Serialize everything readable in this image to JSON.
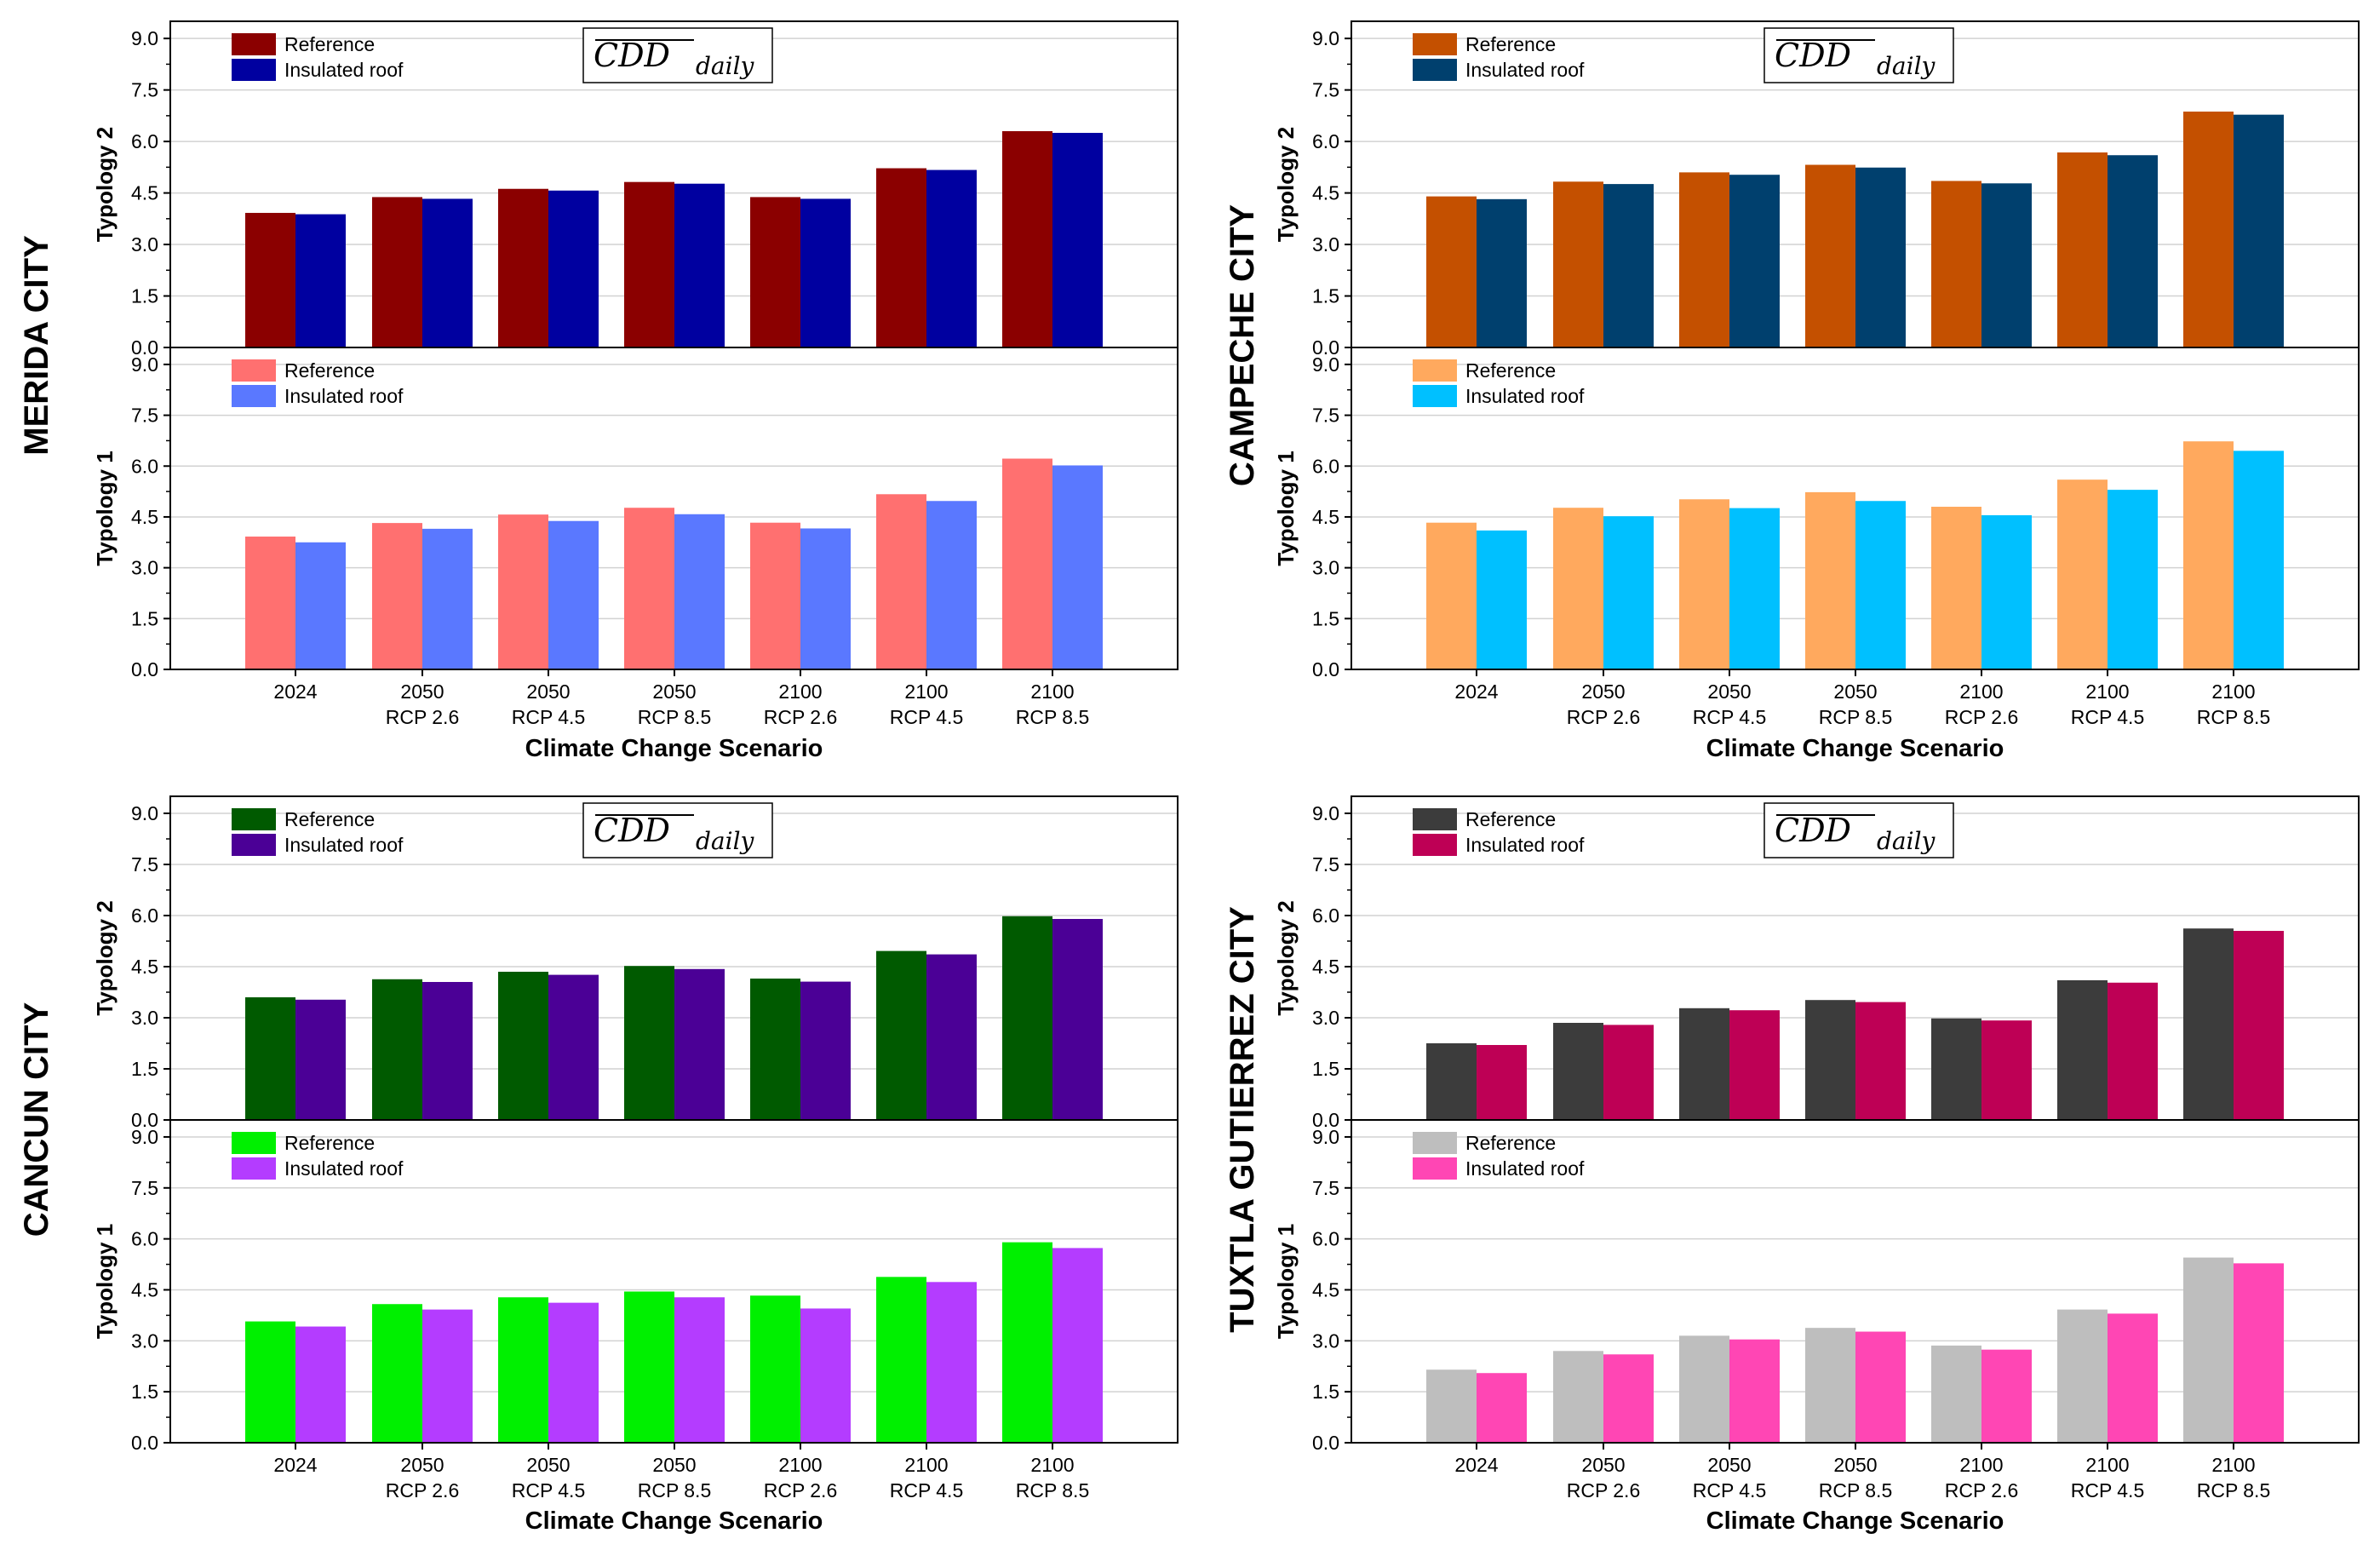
{
  "chart_data": {
    "type": "bar",
    "xlabel": "Climate Change Scenario",
    "ylim": [
      0,
      9.5
    ],
    "yticks": [
      "0.0",
      "1.5",
      "3.0",
      "4.5",
      "6.0",
      "7.5",
      "9.0"
    ],
    "categories": [
      [
        "2024",
        ""
      ],
      [
        "2050",
        "RCP 2.6"
      ],
      [
        "2050",
        "RCP 4.5"
      ],
      [
        "2050",
        "RCP 8.5"
      ],
      [
        "2100",
        "RCP 2.6"
      ],
      [
        "2100",
        "RCP 4.5"
      ],
      [
        "2100",
        "RCP 8.5"
      ]
    ],
    "annotation": {
      "main": "CDD",
      "sub": "daily"
    },
    "panels": [
      {
        "city": "MERIDA CITY",
        "subplots": [
          {
            "ylabel": "Typology 2",
            "series": [
              {
                "name": "Reference",
                "color": "#8B0000",
                "values": [
                  3.92,
                  4.38,
                  4.62,
                  4.82,
                  4.38,
                  5.22,
                  6.3
                ]
              },
              {
                "name": "Insulated roof",
                "color": "#0000A0",
                "values": [
                  3.88,
                  4.33,
                  4.57,
                  4.77,
                  4.33,
                  5.17,
                  6.25
                ]
              }
            ]
          },
          {
            "ylabel": "Typology 1",
            "series": [
              {
                "name": "Reference",
                "color": "#FF7070",
                "values": [
                  3.92,
                  4.32,
                  4.57,
                  4.77,
                  4.33,
                  5.17,
                  6.22
                ]
              },
              {
                "name": "Insulated roof",
                "color": "#5A78FF",
                "values": [
                  3.75,
                  4.15,
                  4.38,
                  4.58,
                  4.16,
                  4.97,
                  6.02
                ]
              }
            ]
          }
        ]
      },
      {
        "city": "CAMPECHE CITY",
        "subplots": [
          {
            "ylabel": "Typology 2",
            "series": [
              {
                "name": "Reference",
                "color": "#C45000",
                "values": [
                  4.4,
                  4.83,
                  5.1,
                  5.32,
                  4.85,
                  5.68,
                  6.87
                ]
              },
              {
                "name": "Insulated roof",
                "color": "#00406E",
                "values": [
                  4.32,
                  4.76,
                  5.03,
                  5.24,
                  4.78,
                  5.6,
                  6.78
                ]
              }
            ]
          },
          {
            "ylabel": "Typology 1",
            "series": [
              {
                "name": "Reference",
                "color": "#FFA95E",
                "values": [
                  4.33,
                  4.77,
                  5.02,
                  5.23,
                  4.8,
                  5.6,
                  6.73
                ]
              },
              {
                "name": "Insulated roof",
                "color": "#00C0FF",
                "values": [
                  4.1,
                  4.52,
                  4.76,
                  4.97,
                  4.55,
                  5.3,
                  6.45
                ]
              }
            ]
          }
        ]
      },
      {
        "city": "CANCUN CITY",
        "subplots": [
          {
            "ylabel": "Typology 2",
            "series": [
              {
                "name": "Reference",
                "color": "#005A00",
                "values": [
                  3.6,
                  4.13,
                  4.35,
                  4.52,
                  4.15,
                  4.96,
                  5.98
                ]
              },
              {
                "name": "Insulated roof",
                "color": "#4B0096",
                "values": [
                  3.53,
                  4.05,
                  4.26,
                  4.43,
                  4.06,
                  4.86,
                  5.9
                ]
              }
            ]
          },
          {
            "ylabel": "Typology 1",
            "series": [
              {
                "name": "Reference",
                "color": "#00F000",
                "values": [
                  3.57,
                  4.08,
                  4.28,
                  4.45,
                  4.33,
                  4.88,
                  5.9
                ]
              },
              {
                "name": "Insulated roof",
                "color": "#B43CFF",
                "values": [
                  3.42,
                  3.92,
                  4.12,
                  4.28,
                  3.95,
                  4.73,
                  5.73
                ]
              }
            ]
          }
        ]
      },
      {
        "city": "TUXTLA GUTIERREZ CITY",
        "subplots": [
          {
            "ylabel": "Typology 2",
            "series": [
              {
                "name": "Reference",
                "color": "#3C3C3C",
                "values": [
                  2.25,
                  2.85,
                  3.28,
                  3.52,
                  2.98,
                  4.1,
                  5.62
                ]
              },
              {
                "name": "Insulated roof",
                "color": "#BE0055",
                "values": [
                  2.2,
                  2.79,
                  3.22,
                  3.46,
                  2.92,
                  4.03,
                  5.55
                ]
              }
            ]
          },
          {
            "ylabel": "Typology 1",
            "series": [
              {
                "name": "Reference",
                "color": "#BEBEBE",
                "values": [
                  2.15,
                  2.7,
                  3.15,
                  3.38,
                  2.86,
                  3.92,
                  5.45
                ]
              },
              {
                "name": "Insulated roof",
                "color": "#FF46B4",
                "values": [
                  2.05,
                  2.6,
                  3.04,
                  3.27,
                  2.74,
                  3.8,
                  5.28
                ]
              }
            ]
          }
        ]
      }
    ]
  }
}
